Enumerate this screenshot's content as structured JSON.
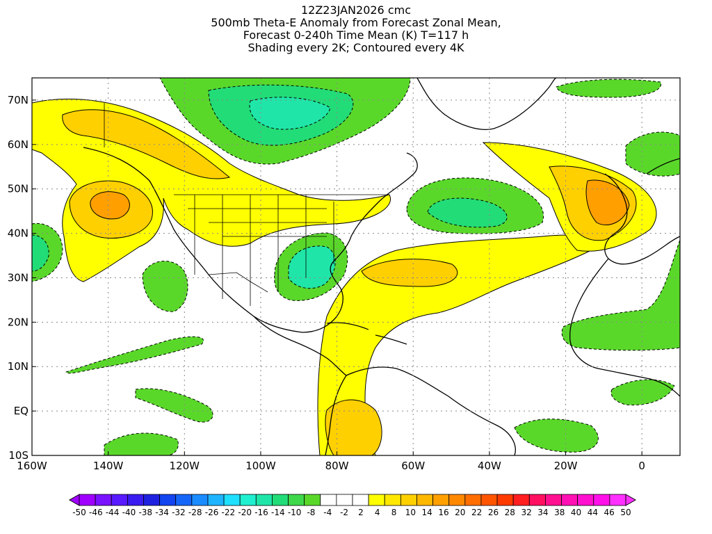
{
  "title_lines": [
    "12Z23JAN2026 cmc",
    "500mb Theta-E Anomaly from Forecast Zonal Mean,",
    "Forecast 0-240h Time Mean (K) T=117 h",
    "Shading every 2K; Contoured every 4K"
  ],
  "chart_data": {
    "type": "heatmap",
    "title": "500mb Theta-E Anomaly from Forecast Zonal Mean, Forecast 0-240h Time Mean (K) T=117 h",
    "run": "12Z23JAN2026 cmc",
    "shading_note": "Shading every 2K; Contoured every 4K",
    "units": "K",
    "xlim": [
      -160,
      10
    ],
    "ylim": [
      -10,
      75
    ],
    "x_ticks": [
      {
        "value": -160,
        "label": "160W"
      },
      {
        "value": -140,
        "label": "140W"
      },
      {
        "value": -120,
        "label": "120W"
      },
      {
        "value": -100,
        "label": "100W"
      },
      {
        "value": -80,
        "label": "80W"
      },
      {
        "value": -60,
        "label": "60W"
      },
      {
        "value": -40,
        "label": "40W"
      },
      {
        "value": -20,
        "label": "20W"
      },
      {
        "value": 0,
        "label": "0"
      }
    ],
    "y_ticks": [
      {
        "value": -10,
        "label": "10S"
      },
      {
        "value": 0,
        "label": "EQ"
      },
      {
        "value": 10,
        "label": "10N"
      },
      {
        "value": 20,
        "label": "20N"
      },
      {
        "value": 30,
        "label": "30N"
      },
      {
        "value": 40,
        "label": "40N"
      },
      {
        "value": 50,
        "label": "50N"
      },
      {
        "value": 60,
        "label": "60N"
      },
      {
        "value": 70,
        "label": "70N"
      }
    ],
    "grid": true,
    "colorbar": {
      "labels": [
        "-50",
        "-46",
        "-44",
        "-40",
        "-38",
        "-34",
        "-32",
        "-28",
        "-26",
        "-22",
        "-20",
        "-16",
        "-14",
        "-10",
        "-8",
        "-4",
        "-2",
        "2",
        "4",
        "8",
        "10",
        "14",
        "16",
        "20",
        "22",
        "26",
        "28",
        "32",
        "34",
        "38",
        "40",
        "44",
        "46",
        "50"
      ],
      "colors": [
        "#a000ff",
        "#7a12ff",
        "#5a1aff",
        "#3a1cf0",
        "#1e22e0",
        "#1244f0",
        "#1466f8",
        "#1a8cff",
        "#1fb4ff",
        "#1fe0ff",
        "#1ff0d0",
        "#1fe6a8",
        "#22dc78",
        "#3ed84a",
        "#5ad82a",
        "#ffffff",
        "#ffffff",
        "#ffffff",
        "#ffff00",
        "#ffe800",
        "#ffd000",
        "#ffb800",
        "#ffa000",
        "#ff8800",
        "#ff6e00",
        "#ff5500",
        "#ff3a00",
        "#ff1e20",
        "#ff1060",
        "#ff1090",
        "#ff10b4",
        "#ff10d0",
        "#ff10ea",
        "#ff30ff"
      ]
    },
    "anomaly_regions": [
      {
        "name": "Gulf of Alaska warm anomaly",
        "center": [
          -140,
          48
        ],
        "peak_K": 14
      },
      {
        "name": "Western Canada warm band",
        "center": [
          -125,
          57
        ],
        "peak_K": 10
      },
      {
        "name": "Canadian Arctic / Hudson Bay cold anomaly",
        "center": [
          -88,
          66
        ],
        "peak_K": -14
      },
      {
        "name": "Southeast US cold anomaly",
        "center": [
          -87,
          32
        ],
        "peak_K": -14
      },
      {
        "name": "NW Atlantic cold anomaly",
        "center": [
          -48,
          44
        ],
        "peak_K": -12
      },
      {
        "name": "Subtropical Atlantic warm plume",
        "center": [
          -60,
          30
        ],
        "peak_K": 12
      },
      {
        "name": "Western Europe warm anomaly",
        "center": [
          -8,
          47
        ],
        "peak_K": 14
      },
      {
        "name": "NE Pacific cold anomaly",
        "center": [
          -158,
          37
        ],
        "peak_K": -10
      },
      {
        "name": "Eastern Pacific tropical cold anomaly",
        "center": [
          -128,
          14
        ],
        "peak_K": -6
      },
      {
        "name": "West Africa cold anomaly",
        "center": [
          -5,
          22
        ],
        "peak_K": -8
      },
      {
        "name": "South America warm anomaly",
        "center": [
          -72,
          2
        ],
        "peak_K": 10
      }
    ]
  }
}
